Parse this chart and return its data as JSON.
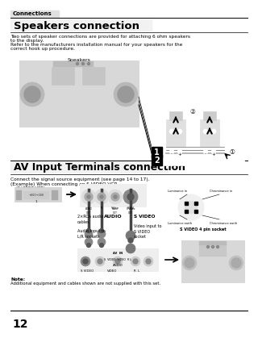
{
  "bg_color": "#ffffff",
  "header_tab": "Connections",
  "section1_title": "Speakers connection",
  "section1_body1": "Two sets of speaker connections are provided for attaching 6 ohm speakers",
  "section1_body2": "to the display.",
  "section1_body3": "Refer to the manufacturers installation manual for your speakers for the",
  "section1_body4": "correct hook up procedure.",
  "speakers_label": "Speakers",
  "section2_title": "AV Input Terminals connection",
  "section2_body1": "Connect the signal source equipment (see page 14 to 17).",
  "section2_body2": "(Example) When connecting an S VIDEO VCR",
  "vcr_label": "(S VIDEO VCR)",
  "cables_label": "2×RCA audio\ncables",
  "audio_label": "AUDIO",
  "audio_input_label": "Audio input to\nL/R sockets",
  "svideo_label": "S VIDEO",
  "video_input_label": "Video input to\nS VIDEO\nsocket",
  "svideo_pin_title": "S VIDEO 4 pin socket",
  "lum_earth": "Luminance earth",
  "chrom_earth": "Chrominance earth",
  "lum_in": "Luminance in",
  "chrom_in": "Chrominance in",
  "note_bold": "Note:",
  "note_text": "Additional equipment and cables shown are not supplied with this set.",
  "page_num": "12"
}
